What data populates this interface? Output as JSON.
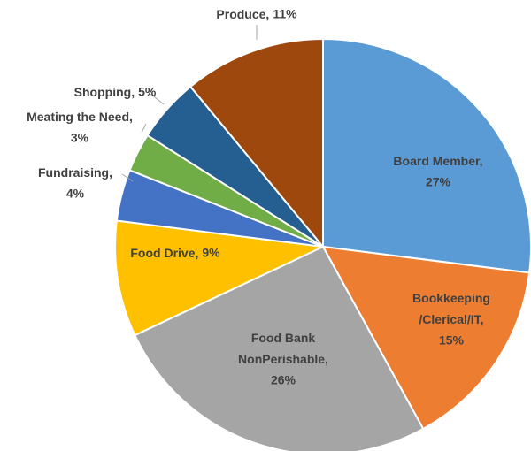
{
  "chart_data": {
    "type": "pie",
    "categories": [
      "Board Member,",
      "Bookkeeping\n/Clerical/IT,",
      "Food Bank\nNonPerishable,",
      "Food Drive,",
      "Fundraising,",
      "Meating the Need,",
      "Shopping,",
      "Produce,"
    ],
    "values": [
      27,
      15,
      26,
      9,
      4,
      3,
      5,
      11
    ],
    "value_labels": [
      "27%",
      "15%",
      "26%",
      "9%",
      "4%",
      "3%",
      "5%",
      "11%"
    ],
    "colors": [
      "#5b9bd5",
      "#ed7d31",
      "#a5a5a5",
      "#ffc000",
      "#4472c4",
      "#70ad47",
      "#255e91",
      "#9e480e"
    ]
  }
}
